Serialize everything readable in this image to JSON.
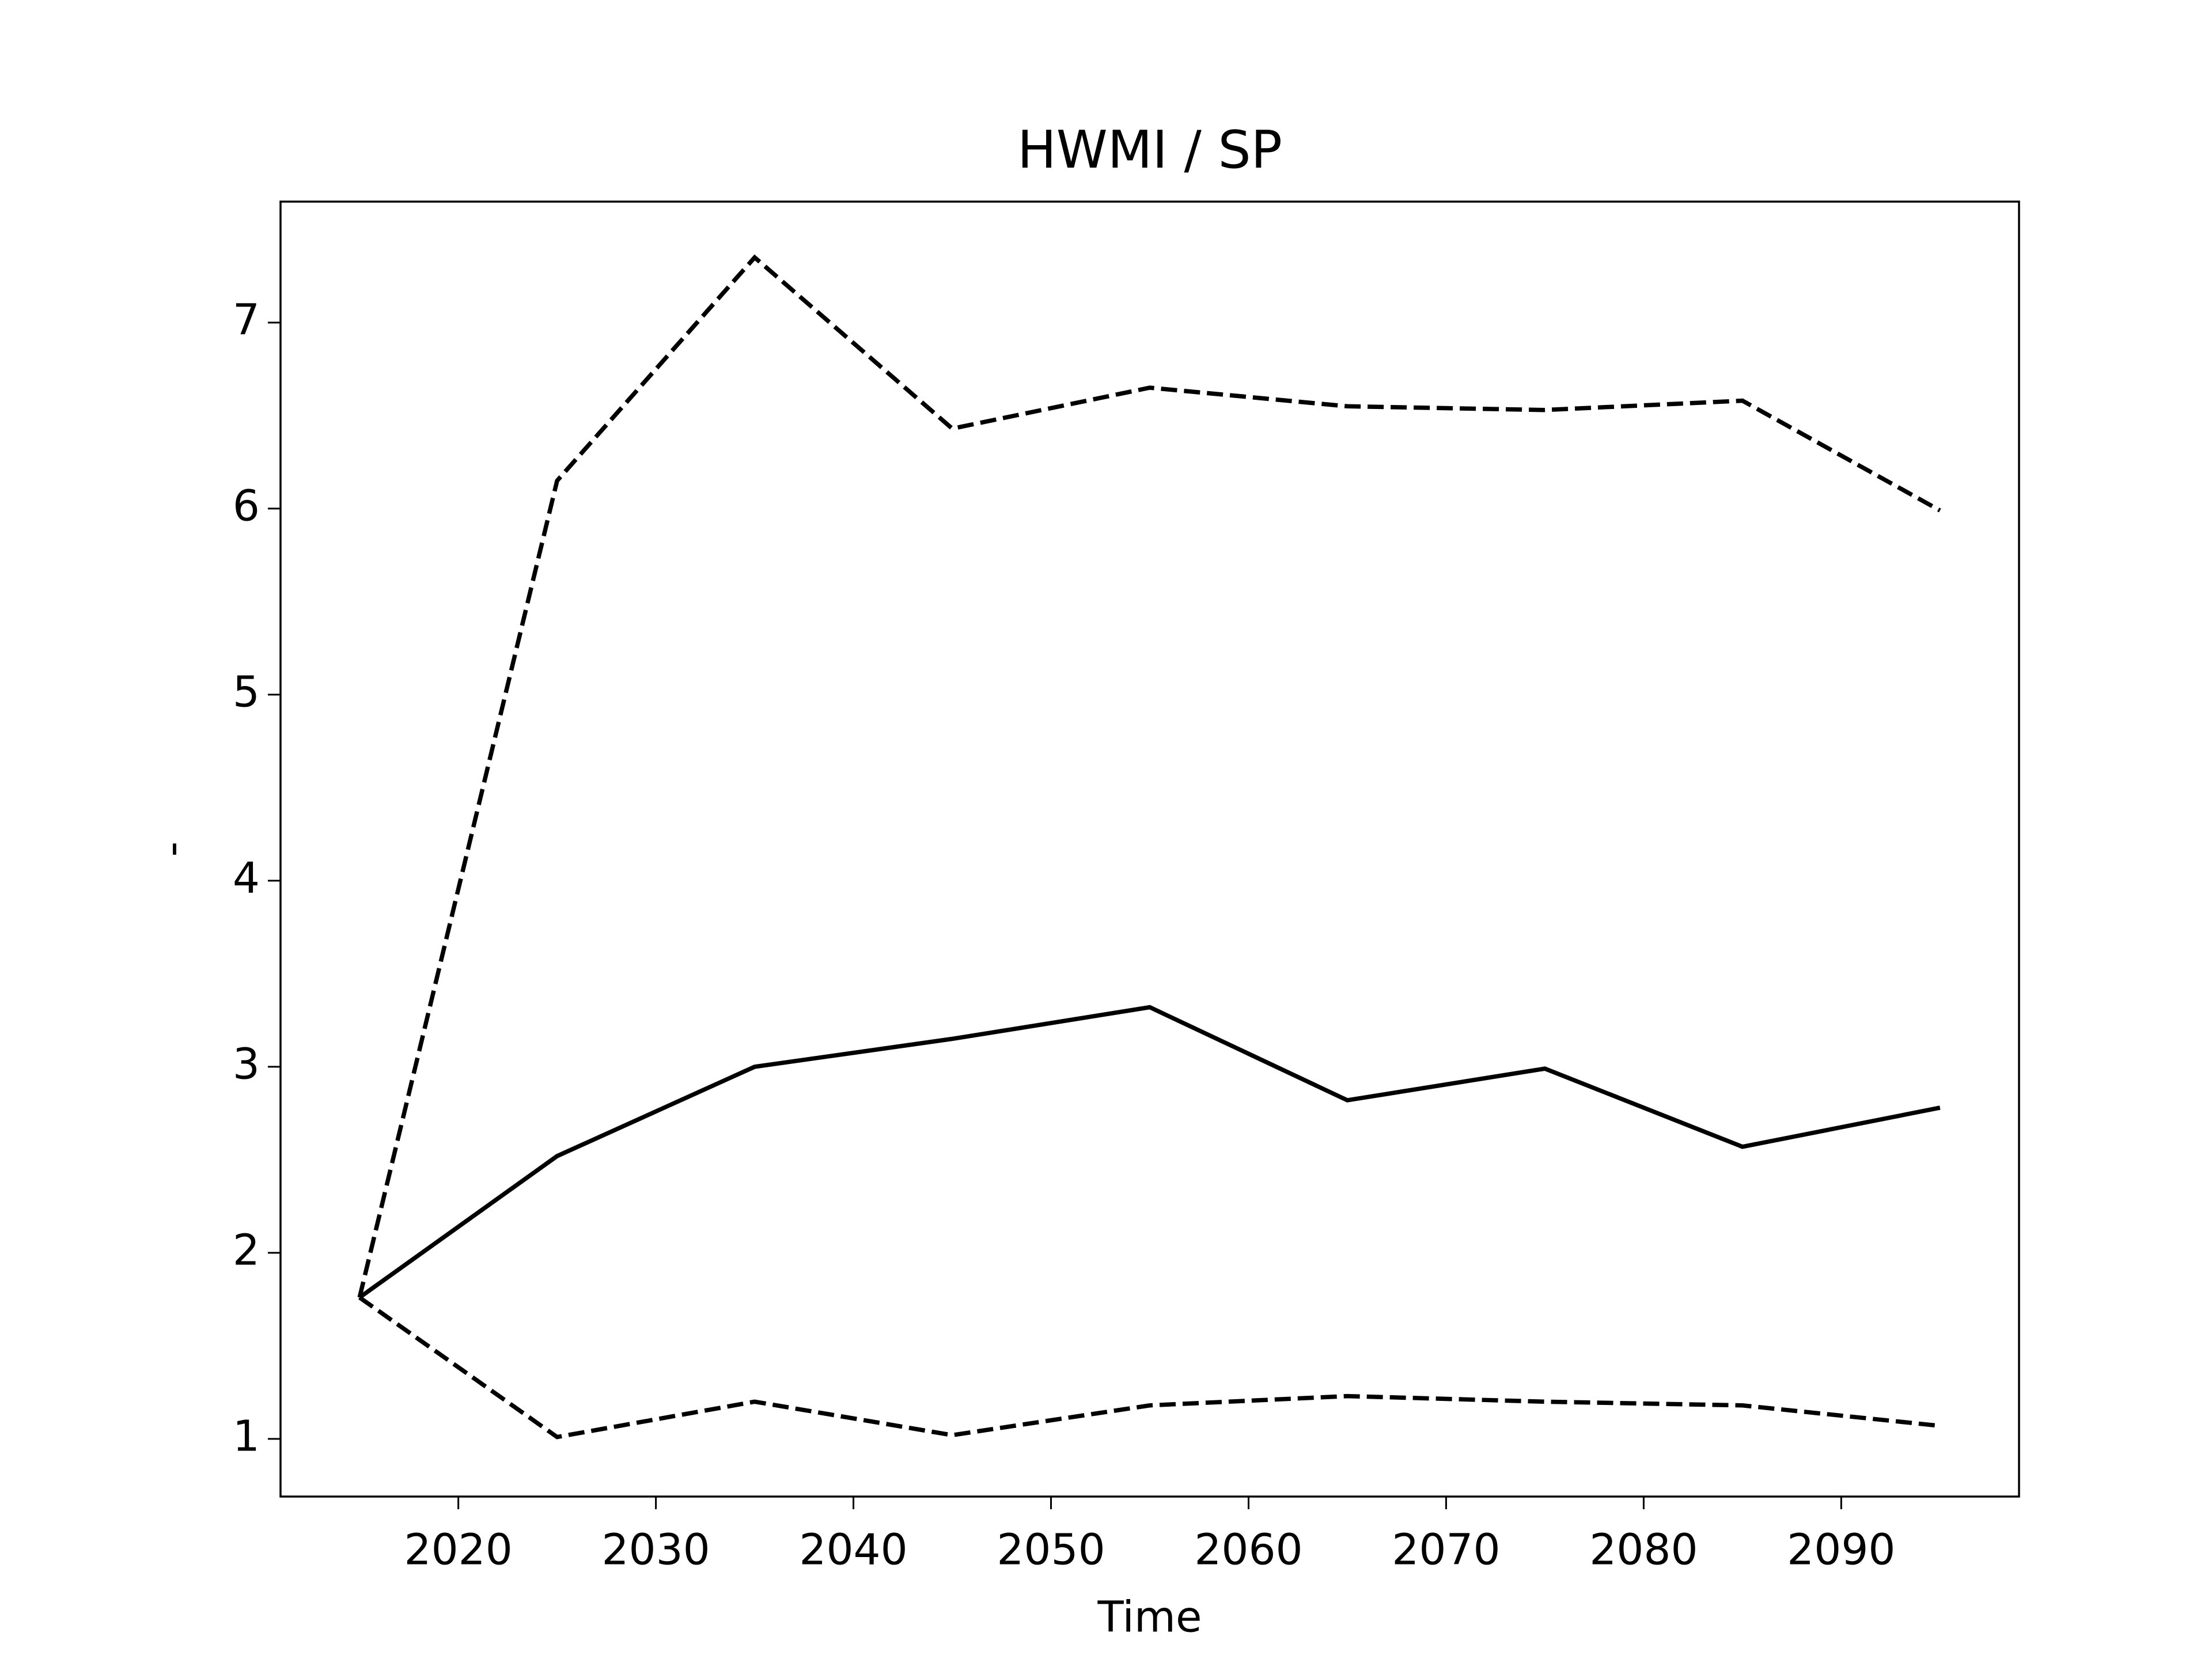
{
  "chart_data": {
    "type": "line",
    "title": "HWMI / SP",
    "xlabel": "Time",
    "ylabel": "-",
    "x": [
      2015,
      2025,
      2035,
      2045,
      2055,
      2065,
      2075,
      2085,
      2095
    ],
    "series": [
      {
        "color": "#000000",
        "linestyle": "solid",
        "values": [
          1.76,
          2.52,
          3.0,
          3.15,
          3.32,
          2.82,
          2.99,
          2.57,
          2.78
        ]
      },
      {
        "color": "#000000",
        "linestyle": "dashed",
        "values": [
          1.76,
          6.15,
          7.35,
          6.43,
          6.65,
          6.55,
          6.53,
          6.58,
          5.99
        ]
      },
      {
        "color": "#000000",
        "linestyle": "dashed",
        "values": [
          1.76,
          1.01,
          1.2,
          1.02,
          1.18,
          1.23,
          1.2,
          1.18,
          1.07
        ]
      }
    ],
    "xlim": [
      2011,
      2099
    ],
    "xticks": [
      2020,
      2030,
      2040,
      2050,
      2060,
      2070,
      2080,
      2090
    ],
    "ylim": [
      0.69,
      7.65
    ],
    "yticks": [
      1,
      2,
      3,
      4,
      5,
      6,
      7
    ],
    "grid": false
  }
}
